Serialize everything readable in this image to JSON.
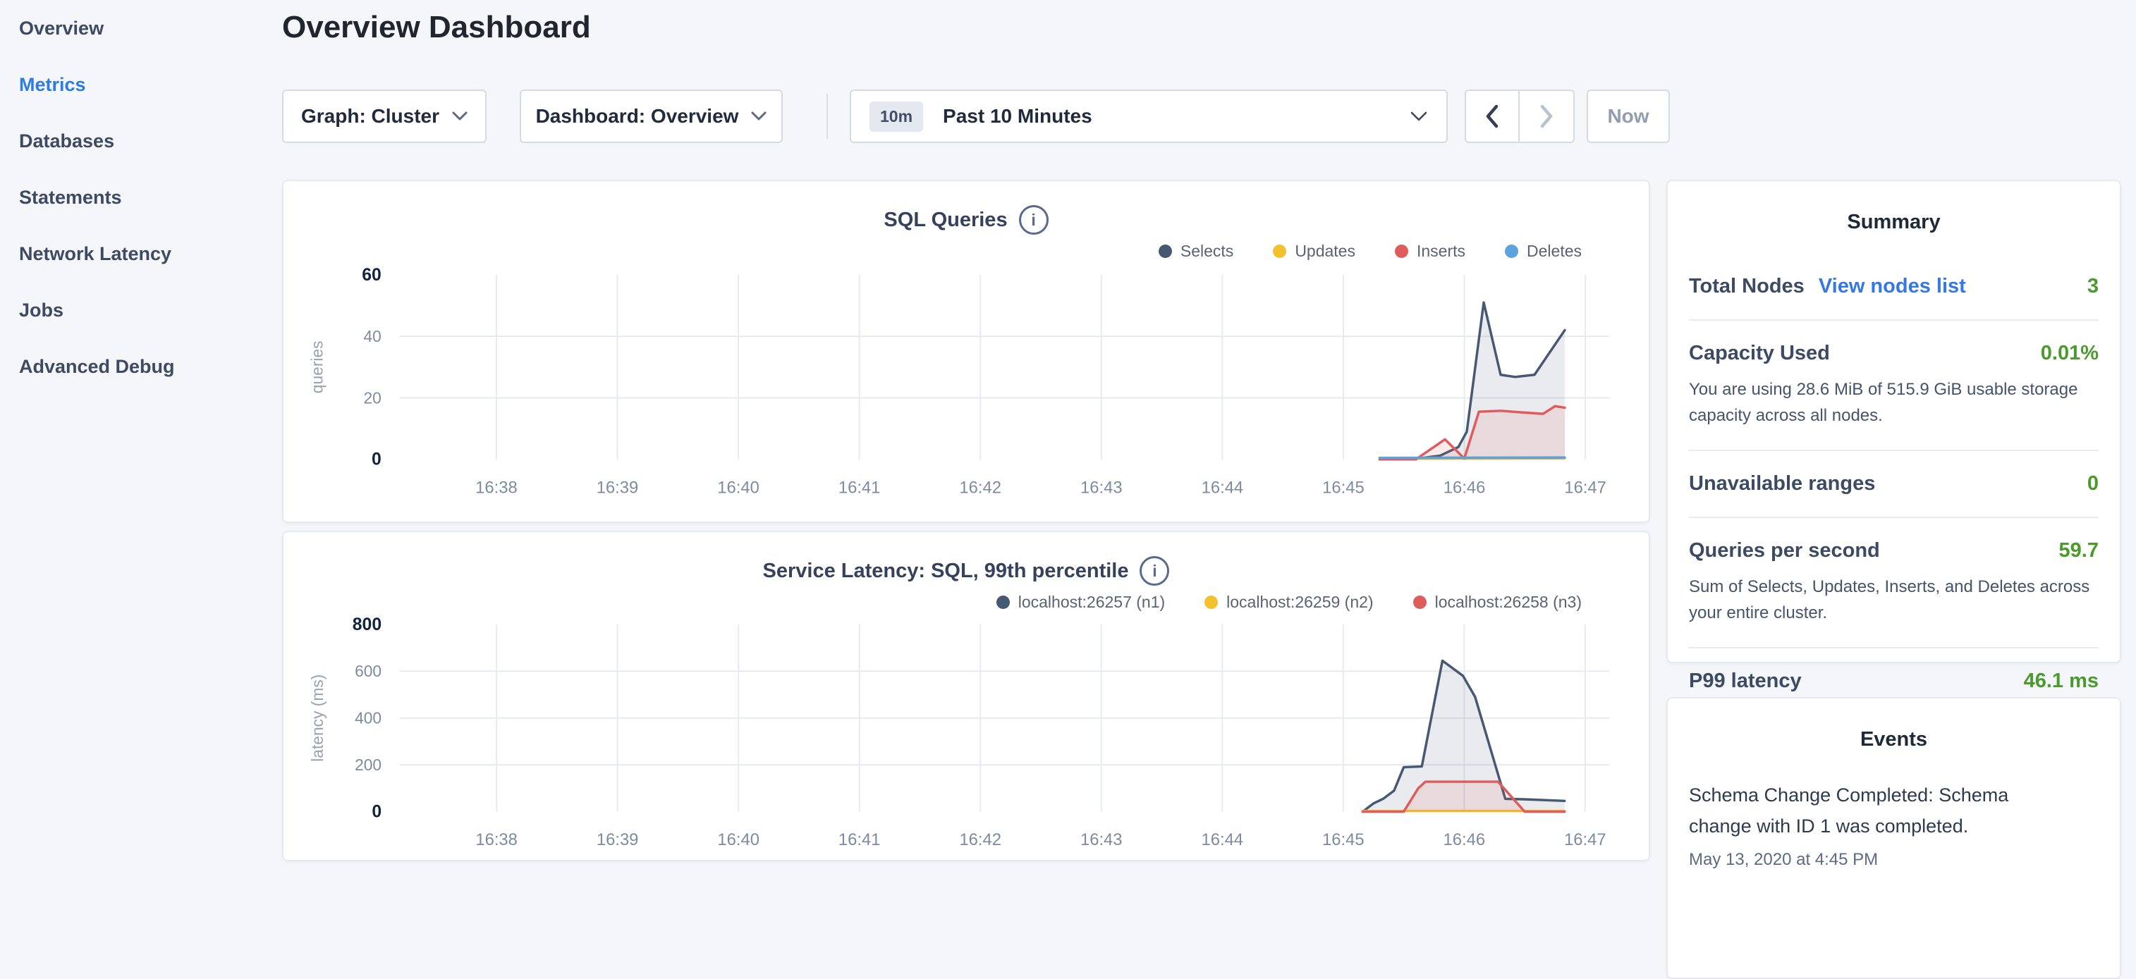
{
  "page": {
    "title": "Overview Dashboard"
  },
  "sidebar": {
    "items": [
      {
        "label": "Overview",
        "active": false
      },
      {
        "label": "Metrics",
        "active": true
      },
      {
        "label": "Databases",
        "active": false
      },
      {
        "label": "Statements",
        "active": false
      },
      {
        "label": "Network Latency",
        "active": false
      },
      {
        "label": "Jobs",
        "active": false
      },
      {
        "label": "Advanced Debug",
        "active": false
      }
    ]
  },
  "toolbar": {
    "graph_dropdown": "Graph: Cluster",
    "dashboard_dropdown": "Dashboard: Overview",
    "time_badge": "10m",
    "time_label": "Past 10 Minutes",
    "now_button": "Now"
  },
  "icons": {
    "dropdown_chevron": "chevron-down-icon",
    "prev": "chevron-left-icon",
    "next": "chevron-right-icon",
    "chart_info": "info-icon"
  },
  "colors": {
    "accent_blue": "#2f7ce0",
    "link_blue": "#3478e5",
    "value_green": "#4a9b2c",
    "series_navy": "#475872",
    "series_yellow": "#f2c12e",
    "series_red": "#e05c5c",
    "series_blue": "#5ca3db"
  },
  "summary": {
    "title": "Summary",
    "rows": [
      {
        "label": "Total Nodes",
        "link": "View nodes list",
        "value": "3"
      },
      {
        "label": "Capacity Used",
        "value": "0.01%",
        "description": "You are using 28.6 MiB of 515.9 GiB usable storage capacity across all nodes."
      },
      {
        "label": "Unavailable ranges",
        "value": "0"
      },
      {
        "label": "Queries per second",
        "value": "59.7",
        "description": "Sum of Selects, Updates, Inserts, and Deletes across your entire cluster."
      },
      {
        "label": "P99 latency",
        "value": "46.1 ms"
      }
    ]
  },
  "events": {
    "title": "Events",
    "items": [
      {
        "message": "Schema Change Completed: Schema change with ID 1 was completed.",
        "timestamp": "May 13, 2020 at 4:45 PM"
      }
    ]
  },
  "chart_data": [
    {
      "type": "area",
      "title": "SQL Queries",
      "ylabel": "queries",
      "xlim": [
        37.2,
        47.2
      ],
      "ylim": [
        0,
        60
      ],
      "y_ticks": [
        0,
        20,
        40,
        60
      ],
      "x_ticks": [
        "16:38",
        "16:39",
        "16:40",
        "16:41",
        "16:42",
        "16:43",
        "16:44",
        "16:45",
        "16:46",
        "16:47"
      ],
      "x_tick_values": [
        38,
        39,
        40,
        41,
        42,
        43,
        44,
        45,
        46,
        47
      ],
      "grid": true,
      "legend_position": "top-right",
      "series": [
        {
          "name": "Selects",
          "color": "#475872",
          "points": [
            [
              45.3,
              0
            ],
            [
              45.62,
              0.3
            ],
            [
              45.8,
              1.2
            ],
            [
              45.95,
              4
            ],
            [
              46.02,
              9
            ],
            [
              46.16,
              51
            ],
            [
              46.3,
              27.5
            ],
            [
              46.42,
              26.8
            ],
            [
              46.58,
              27.5
            ],
            [
              46.83,
              42
            ]
          ]
        },
        {
          "name": "Updates",
          "color": "#f2c12e",
          "points": [
            [
              45.3,
              0.2
            ],
            [
              46.83,
              0.3
            ]
          ]
        },
        {
          "name": "Inserts",
          "color": "#e05c5c",
          "points": [
            [
              45.3,
              0
            ],
            [
              45.6,
              0
            ],
            [
              45.84,
              6.5
            ],
            [
              46.0,
              0.3
            ],
            [
              46.12,
              15.5
            ],
            [
              46.3,
              15.8
            ],
            [
              46.5,
              15.2
            ],
            [
              46.65,
              14.8
            ],
            [
              46.75,
              17.3
            ],
            [
              46.83,
              16.8
            ]
          ]
        },
        {
          "name": "Deletes",
          "color": "#5ca3db",
          "points": [
            [
              45.3,
              0.5
            ],
            [
              46.83,
              0.6
            ]
          ]
        }
      ],
      "x_unit_note": "x values are minutes, 45.3 = 16:45.3"
    },
    {
      "type": "area",
      "title": "Service Latency: SQL, 99th percentile",
      "ylabel": "latency (ms)",
      "xlim": [
        37.2,
        47.2
      ],
      "ylim": [
        0,
        800
      ],
      "y_ticks": [
        0,
        200,
        400,
        600,
        800
      ],
      "x_ticks": [
        "16:38",
        "16:39",
        "16:40",
        "16:41",
        "16:42",
        "16:43",
        "16:44",
        "16:45",
        "16:46",
        "16:47"
      ],
      "x_tick_values": [
        38,
        39,
        40,
        41,
        42,
        43,
        44,
        45,
        46,
        47
      ],
      "grid": true,
      "legend_position": "top-right",
      "series": [
        {
          "name": "localhost:26257 (n1)",
          "color": "#475872",
          "points": [
            [
              45.16,
              0
            ],
            [
              45.25,
              35
            ],
            [
              45.33,
              55
            ],
            [
              45.42,
              90
            ],
            [
              45.5,
              190
            ],
            [
              45.65,
              193
            ],
            [
              45.82,
              645
            ],
            [
              45.99,
              580
            ],
            [
              46.09,
              490
            ],
            [
              46.34,
              55
            ],
            [
              46.55,
              52
            ],
            [
              46.83,
              46
            ]
          ]
        },
        {
          "name": "localhost:26259 (n2)",
          "color": "#f2c12e",
          "points": [
            [
              45.16,
              3
            ],
            [
              46.83,
              3
            ]
          ]
        },
        {
          "name": "localhost:26258 (n3)",
          "color": "#e05c5c",
          "points": [
            [
              45.16,
              0
            ],
            [
              45.5,
              0
            ],
            [
              45.62,
              100
            ],
            [
              45.68,
              128
            ],
            [
              46.28,
              128
            ],
            [
              46.5,
              0
            ],
            [
              46.83,
              0
            ]
          ]
        }
      ],
      "x_unit_note": "x values are minutes, 45.3 = 16:45.3"
    }
  ]
}
